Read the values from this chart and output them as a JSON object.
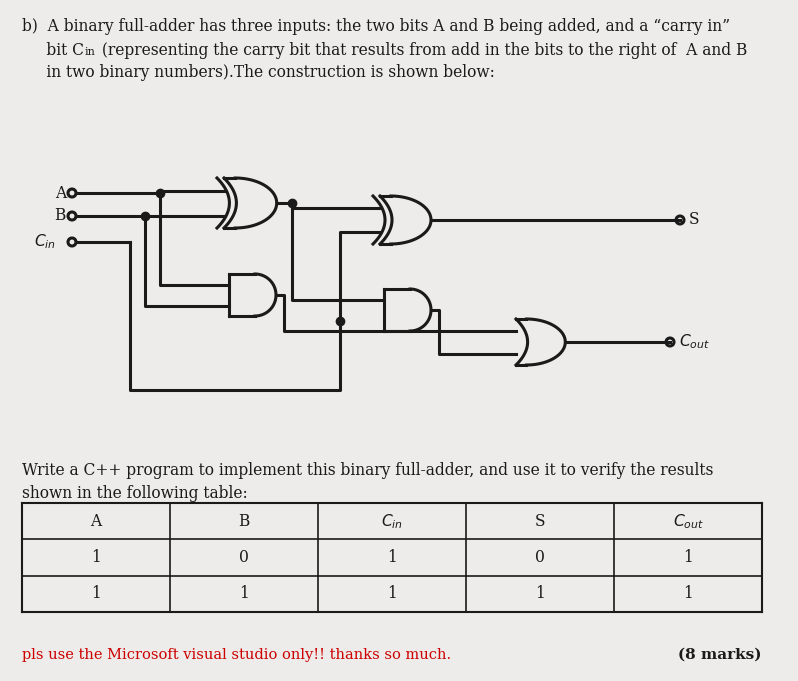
{
  "bg_color": "#eeecea",
  "text_color": "#1a1a1a",
  "red_color": "#cc0000",
  "line1": "b)  A binary full-adder has three inputs: the two bits A and B being added, and a “carry in”",
  "line2_pre": "     bit C",
  "line2_sub": "in",
  "line2_post": " (representing the carry bit that results from add in the bits to the right of  A and B",
  "line3": "     in two binary numbers).The construction is shown below:",
  "write_line1": "Write a C++ program to implement this binary full-adder, and use it to verify the results",
  "write_line2": "shown in the following table:",
  "bottom_red": "pls use the Microsoft visual studio only!! thanks so much.",
  "bottom_right": "(8 marks)",
  "rows": [
    [
      "1",
      "0",
      "1",
      "0",
      "1"
    ],
    [
      "1",
      "1",
      "1",
      "1",
      "1"
    ]
  ]
}
